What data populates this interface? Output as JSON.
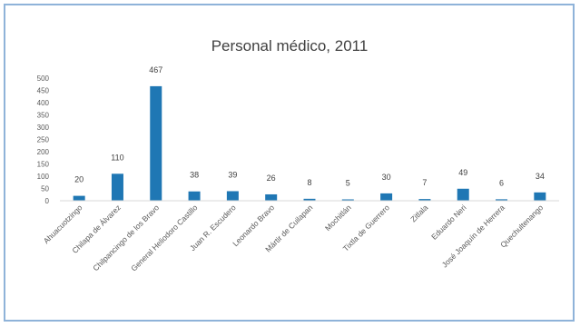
{
  "chart_data": {
    "type": "bar",
    "title": "Personal médico, 2011",
    "xlabel": "",
    "ylabel": "",
    "ylim": [
      0,
      500
    ],
    "yticks": [
      0,
      50,
      100,
      150,
      200,
      250,
      300,
      350,
      400,
      450,
      500
    ],
    "grid": false,
    "legend": "none",
    "bar_color": "#1f77b4",
    "categories": [
      "Ahuacuotzingo",
      "Chilapa de Álvarez",
      "Chilpancingo de los Bravo",
      "General Heliodoro Castillo",
      "Juan R. Escudero",
      "Leonardo Bravo",
      "Mártir de Cuilapan",
      "Mochitlán",
      "Tixtla de Guerrero",
      "Zitlala",
      "Eduardo Neri",
      "José Joaquín de Herrera",
      "Quechultenango"
    ],
    "values": [
      20,
      110,
      467,
      38,
      39,
      26,
      8,
      5,
      30,
      7,
      49,
      6,
      34
    ]
  }
}
